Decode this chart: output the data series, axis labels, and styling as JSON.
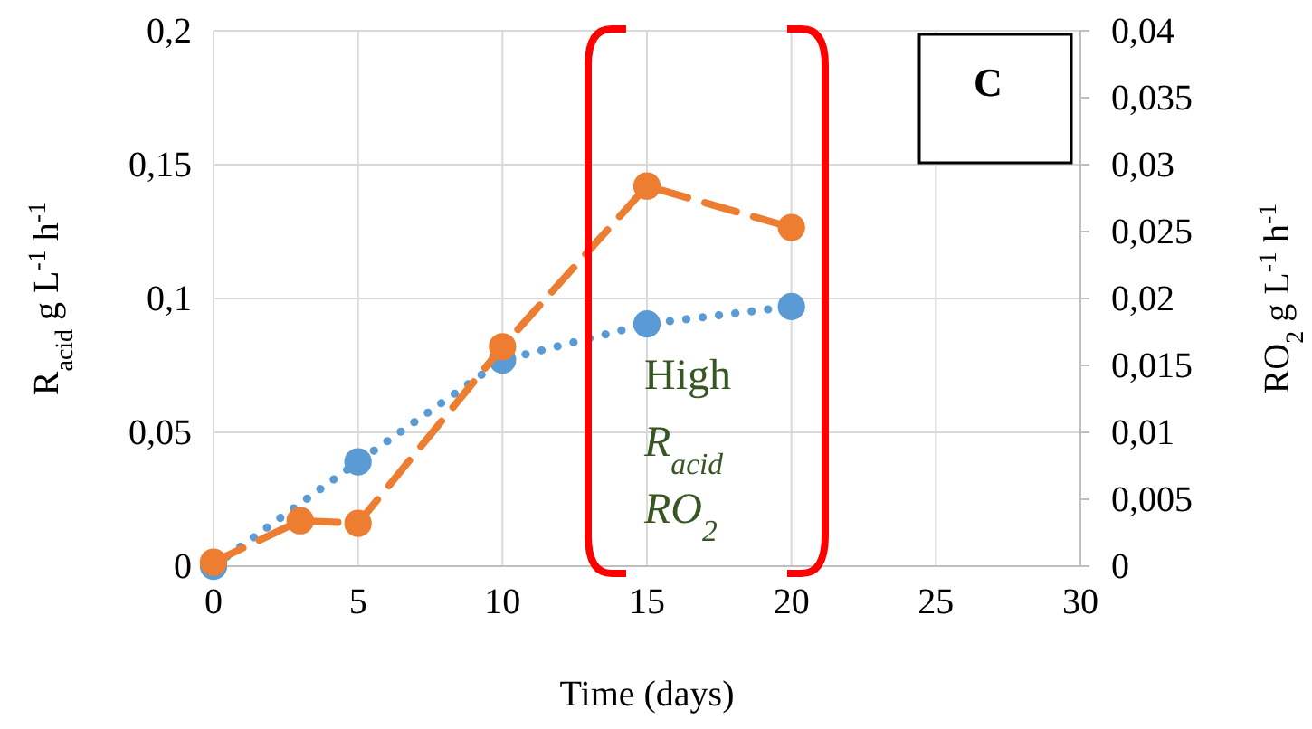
{
  "chart_data": {
    "type": "line",
    "xlabel": "Time (days)",
    "ylabel": "R$_{acid}$ g L$^{-1}$ h$^{-1}$",
    "y2label": "RO$_{2}$  g L$^{-1}$ h$^{-1}$",
    "x": [
      0,
      3,
      5,
      10,
      15,
      20
    ],
    "series": [
      {
        "color": "#5b9bd5",
        "line_style": "dotted",
        "values": [
          0,
          null,
          0.039,
          0.077,
          0.0905,
          0.097
        ]
      },
      {
        "color": "#ed7d31",
        "line_style": "dashed",
        "axis": "y2",
        "values": [
          0.0003,
          0.0034,
          0.0032,
          0.0164,
          0.0284,
          0.0253
        ]
      }
    ],
    "xlim": [
      0,
      30
    ],
    "xticks": [
      0,
      5,
      10,
      15,
      20,
      25,
      30
    ],
    "ylim": [
      0,
      0.2
    ],
    "yticks": [
      0,
      {
        "value": 0.05,
        "label": "0,05"
      },
      {
        "value": 0.1,
        "label": "0,1"
      },
      {
        "value": 0.15,
        "label": "0,15"
      },
      {
        "value": 0.2,
        "label": "0,2"
      }
    ],
    "y2lim": [
      0,
      0.04
    ],
    "y2ticks": [
      0,
      {
        "value": 0.005,
        "label": "0,005"
      },
      {
        "value": 0.01,
        "label": "0,01"
      },
      {
        "value": 0.015,
        "label": "0,015"
      },
      {
        "value": 0.02,
        "label": "0,02"
      },
      {
        "value": 0.025,
        "label": "0,025"
      },
      {
        "value": 0.03,
        "label": "0,03"
      },
      {
        "value": 0.035,
        "label": "0,035"
      },
      {
        "value": 0.04,
        "label": "0,04"
      }
    ],
    "grid": true,
    "marker": "circle",
    "annotations": [
      "C",
      "High",
      "R$_{acid}$",
      "RO$_{2}$"
    ]
  }
}
